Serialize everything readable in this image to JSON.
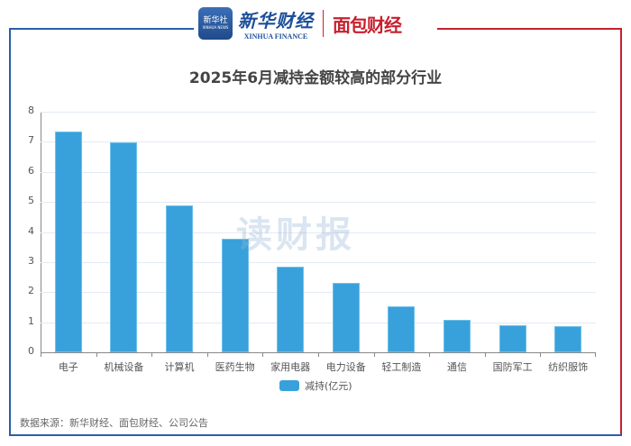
{
  "header": {
    "logo1_cn": "新华社",
    "logo1_en": "XINHUA NEWS",
    "brand1_cn": "新华财经",
    "brand1_en": "XINHUA FINANCE",
    "brand2": "面包财经"
  },
  "watermark": "读财报",
  "source": "数据来源：新华财经、面包财经、公司公告",
  "colors": {
    "bar": "#38a1db",
    "frame_blue": "#2b5ea8",
    "frame_red": "#c8202e"
  },
  "chart_data": {
    "type": "bar",
    "title": "2025年6月减持金额较高的部分行业",
    "xlabel": "",
    "ylabel": "",
    "ylim": [
      0,
      8
    ],
    "yticks": [
      0,
      1,
      2,
      3,
      4,
      5,
      6,
      7,
      8
    ],
    "grid": true,
    "legend_position": "bottom",
    "categories": [
      "电子",
      "机械设备",
      "计算机",
      "医药生物",
      "家用电器",
      "电力设备",
      "轻工制造",
      "通信",
      "国防军工",
      "纺织服饰"
    ],
    "series": [
      {
        "name": "减持(亿元)",
        "values": [
          7.35,
          6.97,
          4.87,
          3.78,
          2.84,
          2.31,
          1.54,
          1.08,
          0.9,
          0.87
        ]
      }
    ]
  }
}
